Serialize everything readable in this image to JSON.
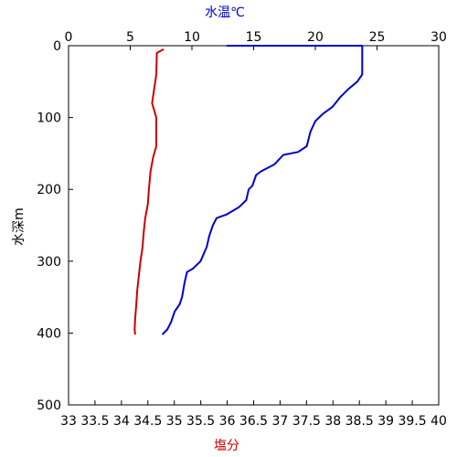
{
  "chart_data": {
    "type": "line",
    "y_axis": {
      "label": "水深m",
      "ticks": [
        0,
        100,
        200,
        300,
        400,
        500
      ],
      "range": [
        0,
        500
      ],
      "inverted": true
    },
    "top_axis": {
      "label": "水温℃",
      "ticks": [
        0,
        5,
        10,
        15,
        20,
        25,
        30
      ],
      "range": [
        0,
        30
      ],
      "color": "#0000cc"
    },
    "bottom_axis": {
      "label": "塩分",
      "ticks": [
        "33",
        "33.5",
        "34",
        "34.5",
        "35",
        "35.5",
        "36",
        "36.5",
        "37",
        "37.5",
        "38",
        "38.5",
        "39",
        "39.5",
        "40"
      ],
      "range": [
        33,
        40
      ],
      "color": "#cc0000"
    },
    "grid": false,
    "series": [
      {
        "quantity": "水温",
        "axis": "top",
        "color": "#0000cc",
        "points": [
          [
            12.8,
            0
          ],
          [
            23.8,
            0
          ],
          [
            23.8,
            40
          ],
          [
            23.4,
            50
          ],
          [
            22.7,
            60
          ],
          [
            22.0,
            72
          ],
          [
            21.4,
            85
          ],
          [
            20.6,
            95
          ],
          [
            20.0,
            105
          ],
          [
            19.6,
            120
          ],
          [
            19.3,
            140
          ],
          [
            18.6,
            148
          ],
          [
            17.4,
            152
          ],
          [
            16.7,
            165
          ],
          [
            15.6,
            175
          ],
          [
            15.2,
            180
          ],
          [
            14.9,
            195
          ],
          [
            14.6,
            200
          ],
          [
            14.4,
            215
          ],
          [
            13.8,
            225
          ],
          [
            12.8,
            235
          ],
          [
            12.0,
            240
          ],
          [
            11.7,
            250
          ],
          [
            11.4,
            265
          ],
          [
            11.2,
            280
          ],
          [
            10.7,
            300
          ],
          [
            10.1,
            310
          ],
          [
            9.6,
            315
          ],
          [
            9.4,
            330
          ],
          [
            9.2,
            350
          ],
          [
            9.0,
            360
          ],
          [
            8.6,
            370
          ],
          [
            8.3,
            385
          ],
          [
            8.0,
            395
          ],
          [
            7.6,
            402
          ]
        ]
      },
      {
        "quantity": "塩分",
        "axis": "bottom",
        "color": "#cc0000",
        "points": [
          [
            34.8,
            5
          ],
          [
            34.67,
            10
          ],
          [
            34.66,
            40
          ],
          [
            34.64,
            50
          ],
          [
            34.62,
            60
          ],
          [
            34.58,
            80
          ],
          [
            34.66,
            100
          ],
          [
            34.66,
            120
          ],
          [
            34.66,
            140
          ],
          [
            34.6,
            155
          ],
          [
            34.55,
            175
          ],
          [
            34.52,
            200
          ],
          [
            34.5,
            220
          ],
          [
            34.45,
            240
          ],
          [
            34.42,
            260
          ],
          [
            34.4,
            280
          ],
          [
            34.36,
            300
          ],
          [
            34.33,
            320
          ],
          [
            34.3,
            340
          ],
          [
            34.28,
            360
          ],
          [
            34.26,
            380
          ],
          [
            34.25,
            395
          ],
          [
            34.26,
            402
          ]
        ]
      }
    ]
  }
}
